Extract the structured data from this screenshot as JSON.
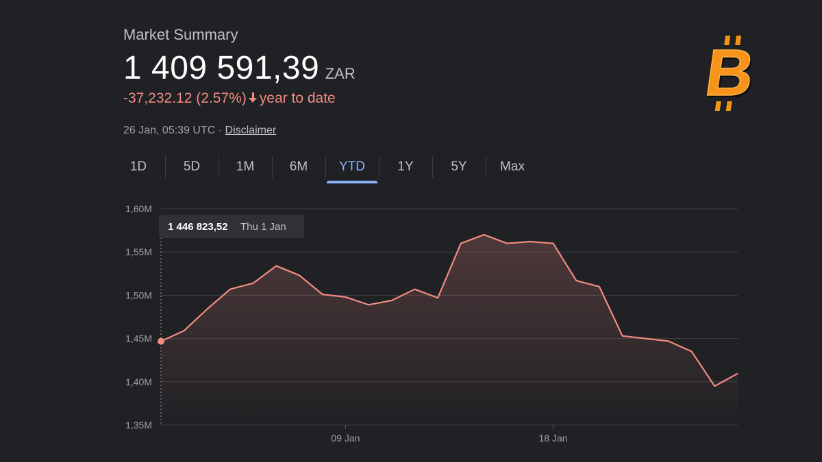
{
  "market_summary": {
    "title": "Market Summary",
    "price": "1 409 591,39",
    "currency": "ZAR",
    "change": "-37,232.12 (2.57%)",
    "change_period": "year to date",
    "timestamp": "26 Jan, 05:39 UTC · ",
    "disclaimer": "Disclaimer"
  },
  "tabs": [
    {
      "label": "1D",
      "active": false
    },
    {
      "label": "5D",
      "active": false
    },
    {
      "label": "1M",
      "active": false
    },
    {
      "label": "6M",
      "active": false
    },
    {
      "label": "YTD",
      "active": true
    },
    {
      "label": "1Y",
      "active": false
    },
    {
      "label": "5Y",
      "active": false
    },
    {
      "label": "Max",
      "active": false
    }
  ],
  "tooltip": {
    "value": "1 446 823,52",
    "date": "Thu 1 Jan"
  },
  "logo": {
    "icon": "bitcoin-icon",
    "glyph": "B"
  },
  "colors": {
    "background": "#202124",
    "line": "#f28b82",
    "negative": "#f28b82",
    "accent": "#8ab4f8",
    "bitcoin_orange": "#f7931a"
  },
  "chart_data": {
    "type": "area",
    "x_unit": "day of January",
    "y_tick_labels": [
      "1,60M",
      "1,55M",
      "1,50M",
      "1,45M",
      "1,40M",
      "1,35M"
    ],
    "y_ticks": [
      1600000,
      1550000,
      1500000,
      1450000,
      1400000,
      1350000
    ],
    "ylim": [
      1350000,
      1600000
    ],
    "x_tick_labels": [
      "09 Jan",
      "18 Jan"
    ],
    "x_ticks": [
      9,
      18
    ],
    "xlim": [
      1,
      26
    ],
    "grid": true,
    "series": [
      {
        "x": [
          1,
          2,
          3,
          4,
          5,
          6,
          7,
          8,
          9,
          10,
          11,
          12,
          13,
          14,
          15,
          16,
          17,
          18,
          19,
          20,
          21,
          22,
          23,
          24,
          25,
          26
        ],
        "values": [
          1446824,
          1459000,
          1484000,
          1507000,
          1514000,
          1534000,
          1523000,
          1501000,
          1498000,
          1489000,
          1494000,
          1507000,
          1497000,
          1560000,
          1570000,
          1560000,
          1562000,
          1560000,
          1517000,
          1510000,
          1453000,
          1450000,
          1447000,
          1435000,
          1395000,
          1409591
        ]
      }
    ],
    "highlight_point": {
      "x": 1,
      "value": 1446824
    }
  }
}
